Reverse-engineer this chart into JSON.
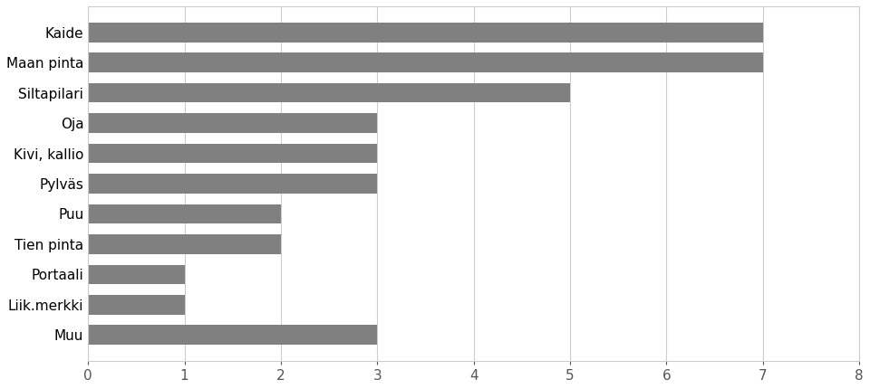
{
  "categories": [
    "Muu",
    "Liik.merkki",
    "Portaali",
    "Tien pinta",
    "Puu",
    "Pylväs",
    "Kivi, kallio",
    "Oja",
    "Siltapilari",
    "Maan pinta",
    "Kaide"
  ],
  "values": [
    3,
    1,
    1,
    2,
    2,
    3,
    3,
    3,
    5,
    7,
    7
  ],
  "bar_color": "#808080",
  "xlim": [
    0,
    8
  ],
  "xticks": [
    0,
    1,
    2,
    3,
    4,
    5,
    6,
    7,
    8
  ],
  "xlabel": "",
  "ylabel": "",
  "title": "",
  "figure_width": 9.6,
  "figure_height": 4.3,
  "background_color": "#ffffff",
  "grid_color": "#cccccc",
  "bar_height": 0.65,
  "font_size": 11
}
